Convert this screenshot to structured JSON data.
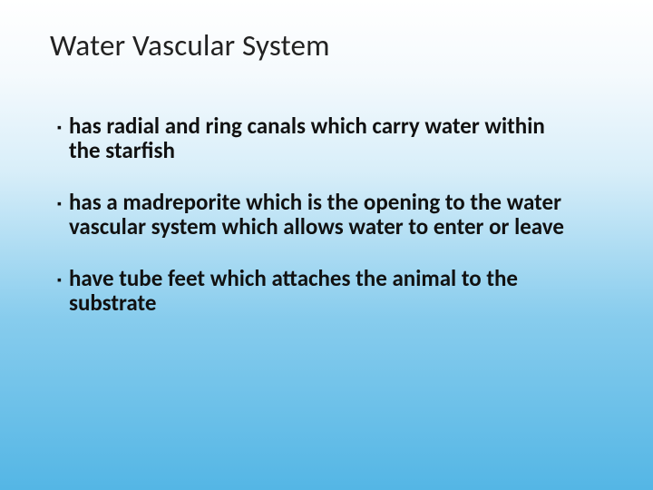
{
  "slide": {
    "title": "Water Vascular System",
    "background_gradient": [
      "#ffffff",
      "#f5fafd",
      "#d8eef9",
      "#87cced",
      "#54b6e5"
    ],
    "title_color": "#222222",
    "title_fontsize": 33,
    "bullet_color": "#111111",
    "bullet_fontsize": 25,
    "bullet_fontweight": 700,
    "bullets": [
      "has radial and ring canals which carry water within the starfish",
      "has a madreporite which is the opening to the water vascular system which allows water to enter or leave",
      "have tube feet which attaches the animal to the substrate"
    ]
  }
}
